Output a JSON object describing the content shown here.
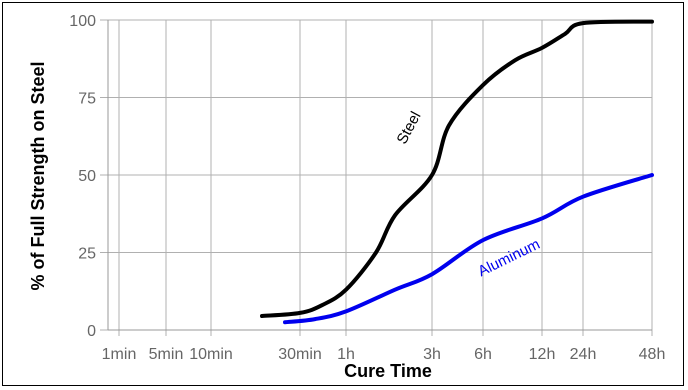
{
  "chart_data": {
    "type": "line",
    "xlabel": "Cure Time",
    "ylabel": "% of Full Strength on Steel",
    "ylim": [
      0,
      100
    ],
    "yticks": [
      0,
      25,
      50,
      75,
      100
    ],
    "xticks": [
      "1min",
      "5min",
      "10min",
      "30min",
      "1h",
      "3h",
      "6h",
      "12h",
      "24h",
      "48h"
    ],
    "grid": true,
    "series": [
      {
        "name": "Steel",
        "color": "#000000",
        "x": [
          "20min",
          "30min",
          "40min",
          "1h",
          "1.5h",
          "2h",
          "3h",
          "4h",
          "6h",
          "9h",
          "12h",
          "18h",
          "24h",
          "48h"
        ],
        "y": [
          4.5,
          5.5,
          8,
          13,
          25,
          37,
          50,
          66,
          79,
          87,
          91,
          95.5,
          99,
          99.5
        ]
      },
      {
        "name": "Aluminum",
        "color": "#0000ee",
        "x": [
          "25min",
          "35min",
          "1h",
          "2h",
          "3h",
          "6h",
          "12h",
          "24h",
          "48h"
        ],
        "y": [
          2.5,
          3.5,
          6,
          13,
          18,
          29,
          36,
          43,
          50
        ]
      }
    ]
  }
}
